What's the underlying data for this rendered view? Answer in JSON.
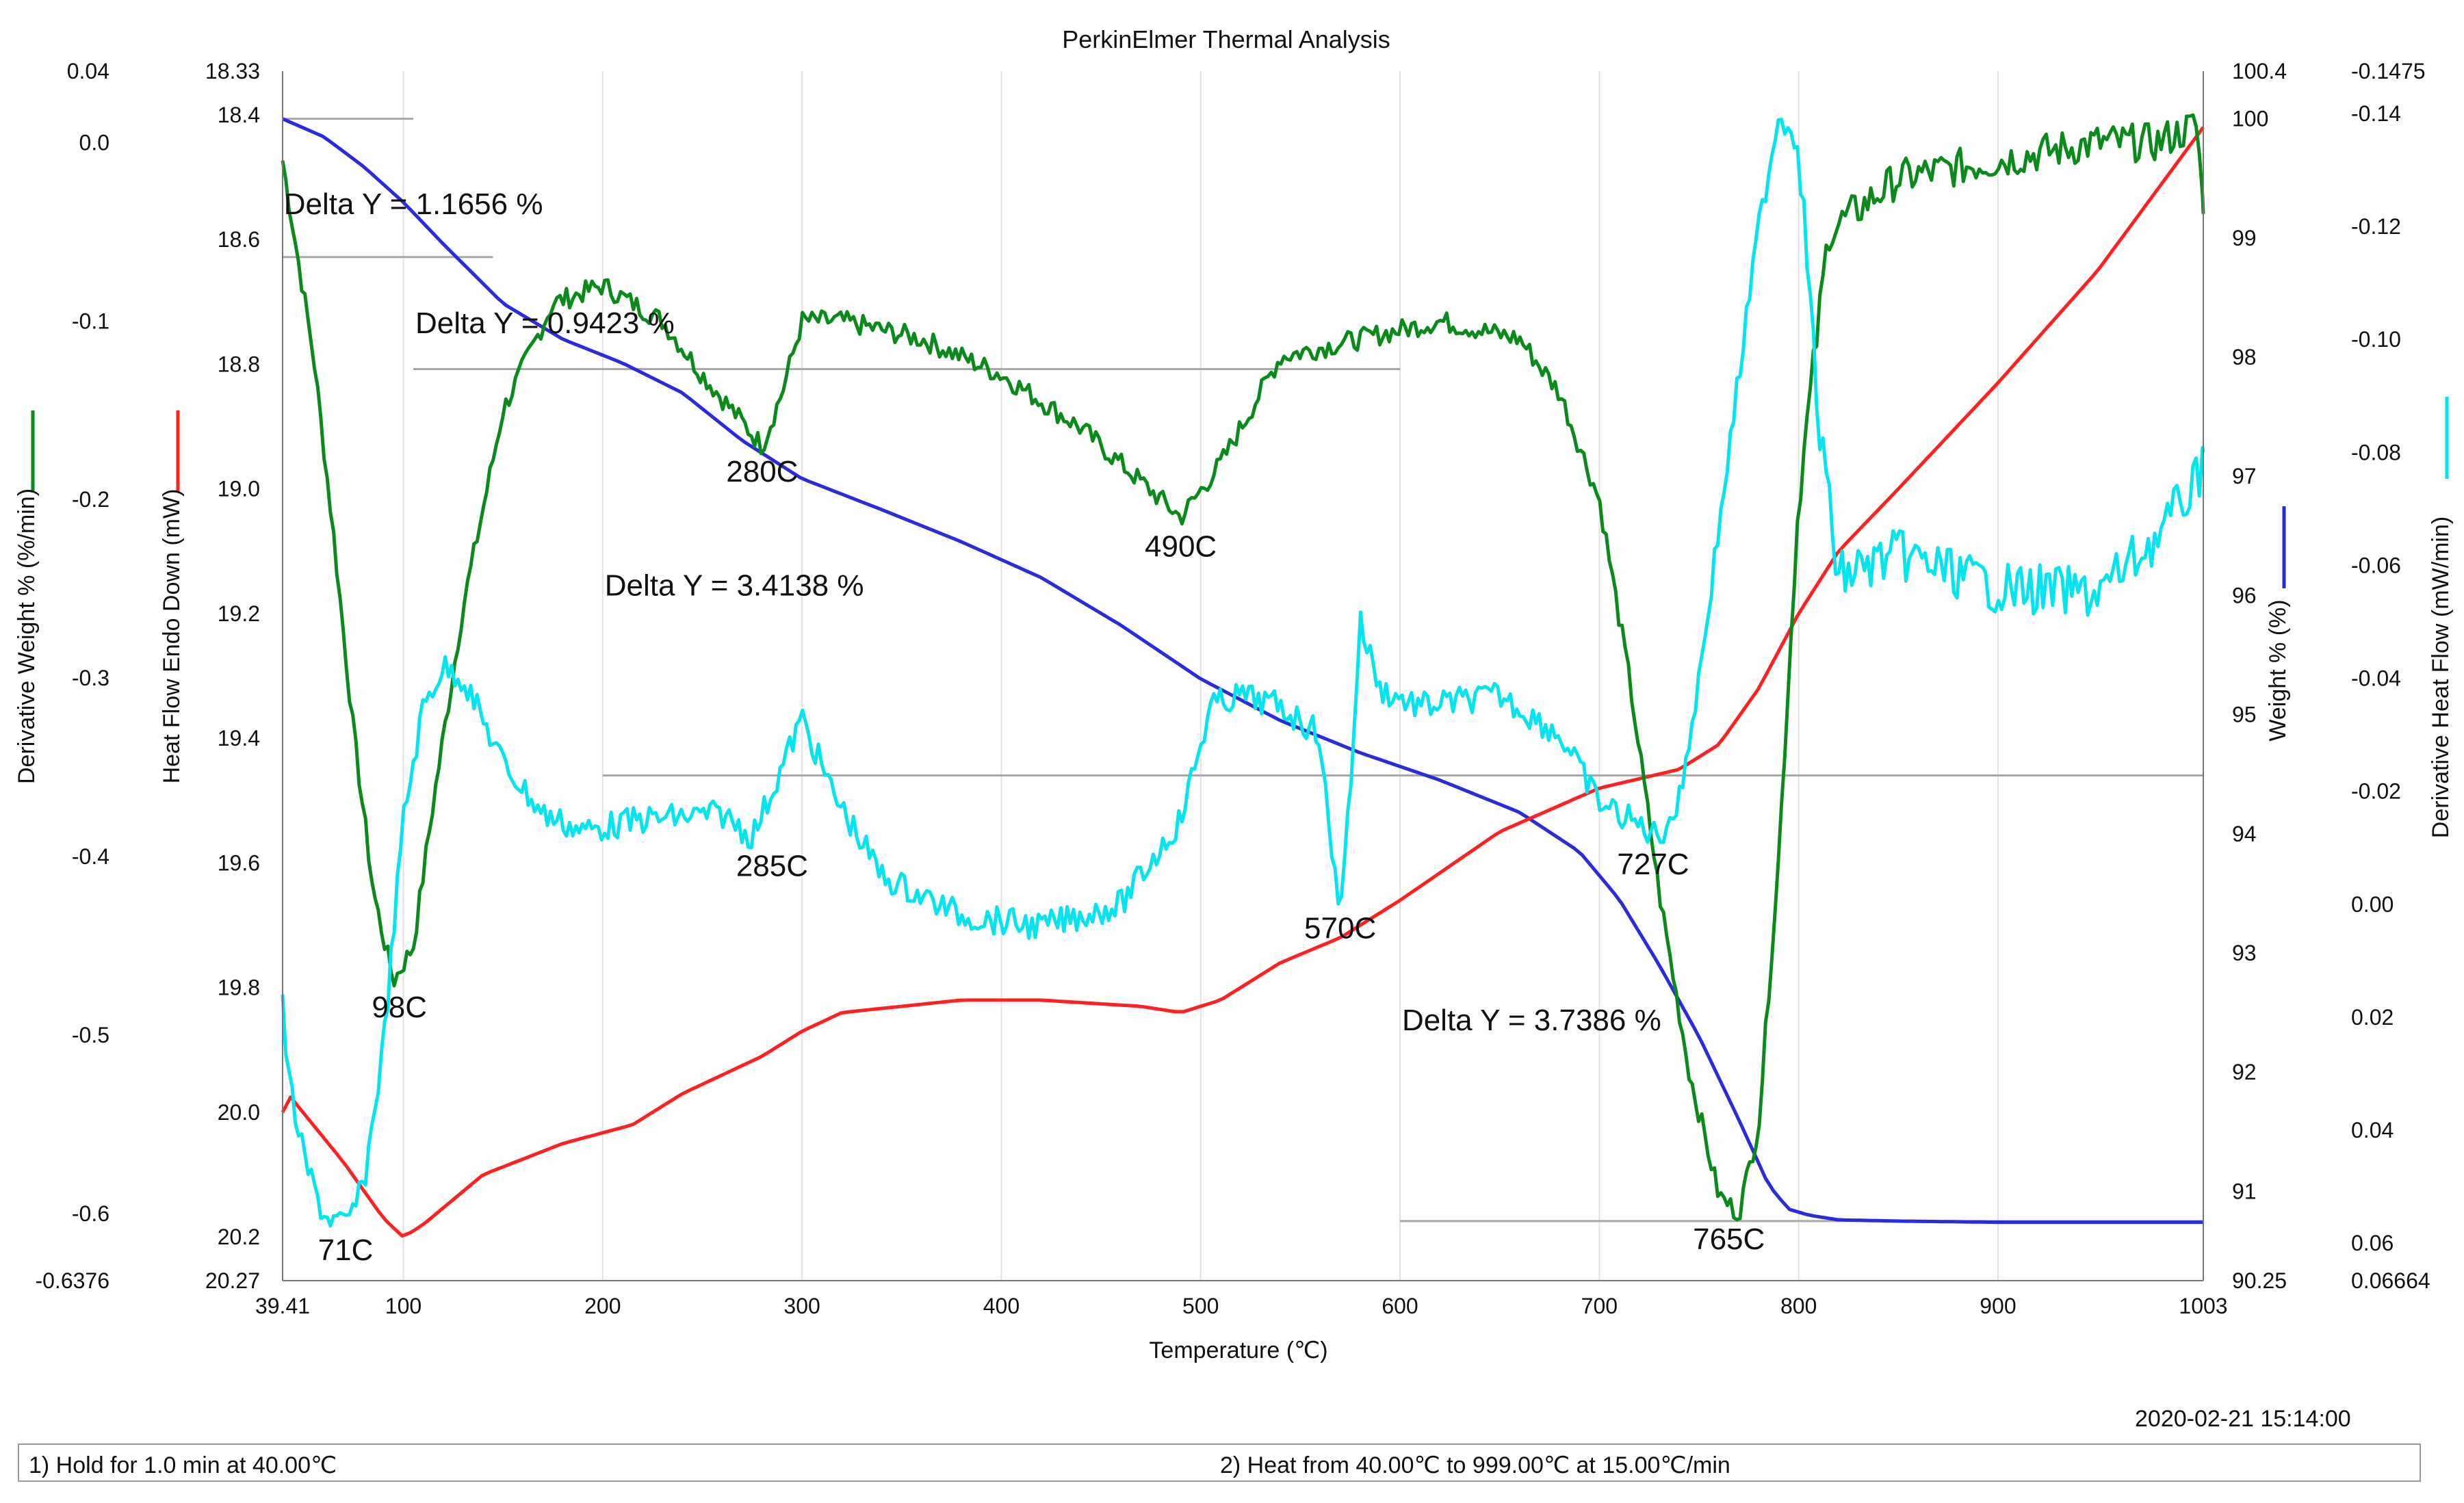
{
  "chart_data": {
    "type": "line",
    "title": "PerkinElmer Thermal Analysis",
    "xlabel": "Temperature (℃)",
    "xlim": [
      39.41,
      1003
    ],
    "x_tick_labels": [
      "39.41",
      "100",
      "200",
      "300",
      "400",
      "500",
      "600",
      "700",
      "800",
      "900",
      "1003"
    ],
    "x_ticks": [
      39.41,
      100,
      200,
      300,
      400,
      500,
      600,
      700,
      800,
      900,
      1003
    ],
    "axes": {
      "derivative_weight": {
        "label": "Derivative Weight % (%/min)",
        "color": "#0a8a1a",
        "side": "left-outer",
        "range": [
          -0.6376,
          0.04
        ],
        "ticks": [
          0.04,
          0.0,
          -0.1,
          -0.2,
          -0.3,
          -0.4,
          -0.5,
          -0.6,
          -0.6376
        ],
        "tick_labels": [
          "0.04",
          "0.0",
          "-0.1",
          "-0.2",
          "-0.3",
          "-0.4",
          "-0.5",
          "-0.6",
          "-0.6376"
        ]
      },
      "heat_flow": {
        "label": "Heat Flow Endo Down (mW)",
        "color": "#ff2020",
        "side": "left-inner",
        "range": [
          20.27,
          18.33
        ],
        "ticks": [
          18.33,
          18.4,
          18.6,
          18.8,
          19.0,
          19.2,
          19.4,
          19.6,
          19.8,
          20.0,
          20.2,
          20.27
        ],
        "tick_labels": [
          "18.33",
          "18.4",
          "18.6",
          "18.8",
          "19.0",
          "19.2",
          "19.4",
          "19.6",
          "19.8",
          "20.0",
          "20.2",
          "20.27"
        ]
      },
      "weight": {
        "label": "Weight % (%)",
        "color": "#2a2adf",
        "side": "right-inner",
        "range": [
          90.25,
          100.4
        ],
        "ticks": [
          100.4,
          100,
          99,
          98,
          97,
          96,
          95,
          94,
          93,
          92,
          91,
          90.25
        ],
        "tick_labels": [
          "100.4",
          "100",
          "99",
          "98",
          "97",
          "96",
          "95",
          "94",
          "93",
          "92",
          "91",
          "90.25"
        ]
      },
      "derivative_heat_flow": {
        "label": "Derivative Heat Flow (mW/min)",
        "color": "#00e5ee",
        "side": "right-outer",
        "range": [
          0.06664,
          -0.1475
        ],
        "ticks": [
          -0.1475,
          -0.14,
          -0.12,
          -0.1,
          -0.08,
          -0.06,
          -0.04,
          -0.02,
          0.0,
          0.02,
          0.04,
          0.06,
          0.06664
        ],
        "tick_labels": [
          "-0.1475",
          "-0.14",
          "-0.12",
          "-0.10",
          "-0.08",
          "-0.06",
          "-0.04",
          "-0.02",
          "0.00",
          "0.02",
          "0.04",
          "0.06",
          "0.06664"
        ]
      }
    },
    "series": [
      {
        "name": "Weight %",
        "axis": "weight",
        "color": "#2a2adf",
        "x": [
          39.41,
          60,
          80,
          100,
          120,
          150,
          180,
          210,
          240,
          270,
          300,
          340,
          380,
          420,
          460,
          500,
          540,
          580,
          620,
          660,
          690,
          710,
          730,
          750,
          770,
          785,
          795,
          805,
          820,
          850,
          900,
          950,
          1003
        ],
        "y": [
          100.0,
          99.85,
          99.6,
          99.3,
          98.95,
          98.45,
          98.15,
          97.95,
          97.7,
          97.3,
          96.98,
          96.72,
          96.45,
          96.15,
          95.75,
          95.3,
          94.95,
          94.68,
          94.45,
          94.18,
          93.85,
          93.45,
          92.9,
          92.3,
          91.6,
          91.05,
          90.85,
          90.8,
          90.76,
          90.75,
          90.74,
          90.74,
          90.74
        ],
        "noise": 0
      },
      {
        "name": "Heat Flow Endo Down",
        "axis": "heat_flow",
        "color": "#ff2020",
        "x": [
          39.41,
          42,
          70,
          90,
          100,
          110,
          140,
          180,
          215,
          240,
          280,
          300,
          320,
          380,
          420,
          470,
          490,
          510,
          540,
          570,
          600,
          650,
          700,
          740,
          760,
          780,
          800,
          820,
          850,
          900,
          950,
          1003
        ],
        "y": [
          20.0,
          19.97,
          20.08,
          20.17,
          20.2,
          20.18,
          20.1,
          20.05,
          20.02,
          19.97,
          19.91,
          19.87,
          19.84,
          19.82,
          19.82,
          19.83,
          19.84,
          19.82,
          19.76,
          19.72,
          19.66,
          19.55,
          19.48,
          19.45,
          19.41,
          19.32,
          19.2,
          19.1,
          19.0,
          18.83,
          18.65,
          18.42
        ],
        "noise": 0
      },
      {
        "name": "Derivative Weight %",
        "axis": "derivative_weight",
        "color": "#0a8a1a",
        "x": [
          39.41,
          45,
          55,
          65,
          75,
          85,
          95,
          105,
          115,
          130,
          150,
          175,
          200,
          230,
          250,
          265,
          280,
          290,
          300,
          320,
          360,
          400,
          440,
          470,
          490,
          510,
          540,
          580,
          620,
          660,
          680,
          700,
          715,
          730,
          745,
          760,
          770,
          780,
          790,
          800,
          815,
          850,
          900,
          950,
          980,
          1000,
          1003
        ],
        "y": [
          -0.01,
          -0.05,
          -0.12,
          -0.22,
          -0.33,
          -0.42,
          -0.47,
          -0.45,
          -0.37,
          -0.26,
          -0.15,
          -0.09,
          -0.08,
          -0.1,
          -0.13,
          -0.15,
          -0.17,
          -0.14,
          -0.1,
          -0.1,
          -0.11,
          -0.13,
          -0.16,
          -0.19,
          -0.21,
          -0.18,
          -0.12,
          -0.11,
          -0.1,
          -0.11,
          -0.14,
          -0.2,
          -0.3,
          -0.42,
          -0.52,
          -0.59,
          -0.6,
          -0.55,
          -0.4,
          -0.2,
          -0.05,
          -0.02,
          -0.01,
          0.0,
          0.0,
          0.01,
          -0.04
        ],
        "noise": 0.006
      },
      {
        "name": "Derivative Heat Flow",
        "axis": "derivative_heat_flow",
        "color": "#00e5ee",
        "x": [
          39.41,
          42,
          50,
          60,
          71,
          80,
          90,
          100,
          110,
          120,
          130,
          150,
          170,
          190,
          220,
          260,
          275,
          285,
          300,
          315,
          340,
          380,
          420,
          460,
          490,
          505,
          520,
          540,
          560,
          565,
          570,
          575,
          580,
          590,
          610,
          650,
          680,
          700,
          720,
          730,
          740,
          750,
          765,
          780,
          790,
          800,
          810,
          820,
          850,
          900,
          950,
          980,
          1000,
          1003
        ],
        "y": [
          0.018,
          0.03,
          0.045,
          0.055,
          0.057,
          0.05,
          0.025,
          -0.015,
          -0.035,
          -0.042,
          -0.04,
          -0.025,
          -0.016,
          -0.013,
          -0.015,
          -0.016,
          -0.012,
          -0.02,
          -0.033,
          -0.02,
          -0.005,
          0.002,
          0.004,
          0.0,
          -0.015,
          -0.035,
          -0.037,
          -0.035,
          -0.03,
          -0.01,
          0.0,
          -0.02,
          -0.05,
          -0.038,
          -0.035,
          -0.037,
          -0.03,
          -0.018,
          -0.014,
          -0.012,
          -0.018,
          -0.04,
          -0.08,
          -0.12,
          -0.14,
          -0.135,
          -0.085,
          -0.058,
          -0.062,
          -0.056,
          -0.055,
          -0.065,
          -0.075,
          -0.08
        ],
        "noise": 0.0025
      }
    ],
    "delta_lines": [
      {
        "axis": "weight",
        "y": 100.0,
        "x_start": 39.41,
        "x_end": 105
      },
      {
        "axis": "weight",
        "y": 98.84,
        "x_start": 39.41,
        "x_end": 145
      },
      {
        "axis": "weight",
        "y": 97.9,
        "x_start": 105,
        "x_end": 600
      },
      {
        "axis": "weight",
        "y": 94.49,
        "x_start": 200,
        "x_end": 1003
      },
      {
        "axis": "weight",
        "y": 90.75,
        "x_start": 600,
        "x_end": 1003
      }
    ],
    "annotations": [
      {
        "text": "Delta Y = 1.1656 %",
        "x": 40,
        "axis": "weight",
        "y": 99.2
      },
      {
        "text": "Delta Y = 0.9423 %",
        "x": 106,
        "axis": "weight",
        "y": 98.2
      },
      {
        "text": "Delta Y = 3.4138 %",
        "x": 201,
        "axis": "weight",
        "y": 96.0
      },
      {
        "text": "Delta Y = 3.7386 %",
        "x": 601,
        "axis": "weight",
        "y": 92.35
      }
    ],
    "peak_labels": [
      {
        "text": "98C",
        "x": 98,
        "axis": "derivative_weight",
        "y": -0.49
      },
      {
        "text": "280C",
        "x": 280,
        "axis": "derivative_weight",
        "y": -0.19
      },
      {
        "text": "490C",
        "x": 490,
        "axis": "derivative_weight",
        "y": -0.232
      },
      {
        "text": "727C",
        "x": 727,
        "axis": "derivative_weight",
        "y": -0.41
      },
      {
        "text": "765C",
        "x": 765,
        "axis": "derivative_weight",
        "y": -0.62
      },
      {
        "text": "71C",
        "x": 71,
        "axis": "derivative_heat_flow",
        "y": 0.063
      },
      {
        "text": "285C",
        "x": 285,
        "axis": "derivative_heat_flow",
        "y": -0.005
      },
      {
        "text": "570C",
        "x": 570,
        "axis": "derivative_heat_flow",
        "y": 0.006
      }
    ]
  },
  "footer": {
    "timestamp": "2020-02-21 15:14:00",
    "step1": "1)  Hold for  1.0 min at 40.00℃",
    "step2": "2)    Heat from 40.00℃ to 999.00℃ at 15.00℃/min"
  }
}
